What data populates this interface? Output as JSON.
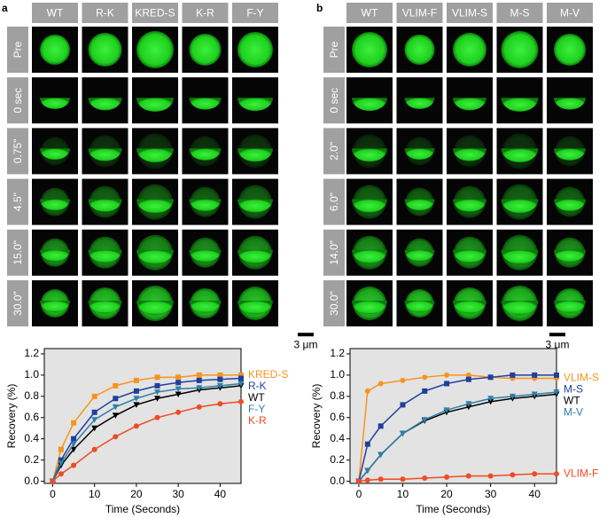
{
  "panels": [
    {
      "letter": "a",
      "columns": [
        "WT",
        "R-K",
        "KRED-S",
        "K-R",
        "F-Y"
      ],
      "rows": [
        "Pre",
        "0 sec",
        "0.75\"",
        "4.5\"",
        "15.0\"",
        "30.0\""
      ],
      "scale_bar": "3 μm"
    },
    {
      "letter": "b",
      "columns": [
        "WT",
        "VLIM-F",
        "VLIM-S",
        "M-S",
        "M-V"
      ],
      "rows": [
        "Pre",
        "0 sec",
        "2.0\"",
        "6.0\"",
        "14.0\"",
        "30.0\""
      ],
      "scale_bar": "3 μm"
    }
  ],
  "chart_data": [
    {
      "type": "line",
      "x_label": "Time (Seconds)",
      "y_label": "Recovery (%)",
      "x": [
        0,
        2,
        5,
        10,
        15,
        20,
        25,
        30,
        35,
        40,
        45
      ],
      "series": [
        {
          "name": "KRED-S",
          "color": "#f7941d",
          "marker": "square",
          "values": [
            0,
            0.3,
            0.55,
            0.8,
            0.9,
            0.95,
            0.98,
            0.98,
            1.0,
            1.0,
            1.0
          ]
        },
        {
          "name": "R-K",
          "color": "#1f3f9f",
          "marker": "square",
          "values": [
            0,
            0.2,
            0.4,
            0.65,
            0.78,
            0.85,
            0.9,
            0.93,
            0.95,
            0.96,
            0.97
          ]
        },
        {
          "name": "WT",
          "color": "#000000",
          "marker": "triangle",
          "values": [
            0,
            0.15,
            0.3,
            0.5,
            0.62,
            0.72,
            0.78,
            0.82,
            0.86,
            0.88,
            0.9
          ]
        },
        {
          "name": "F-Y",
          "color": "#2f7fa8",
          "marker": "triangle",
          "values": [
            0,
            0.17,
            0.35,
            0.58,
            0.7,
            0.78,
            0.84,
            0.87,
            0.88,
            0.9,
            0.92
          ]
        },
        {
          "name": "K-R",
          "color": "#f04b23",
          "marker": "circle",
          "values": [
            0,
            0.07,
            0.15,
            0.3,
            0.42,
            0.52,
            0.6,
            0.65,
            0.7,
            0.73,
            0.75
          ]
        }
      ],
      "xlim": [
        -2,
        45
      ],
      "xticks": [
        0,
        10,
        20,
        30,
        40
      ],
      "ylim": [
        -0.02,
        1.25
      ],
      "yticks": [
        {
          "value": 0,
          "label": "0.0"
        },
        0.2,
        0.4,
        0.6,
        0.8,
        {
          "value": 1,
          "label": "1.0"
        },
        1.2
      ]
    },
    {
      "type": "line",
      "x_label": "Time (Seconds)",
      "y_label": "Recovery (%)",
      "x": [
        0,
        2,
        5,
        10,
        15,
        20,
        25,
        30,
        35,
        40,
        45
      ],
      "series": [
        {
          "name": "VLIM-S",
          "color": "#f7941d",
          "marker": "circle",
          "values": [
            0,
            0.85,
            0.92,
            0.95,
            0.98,
            1.0,
            1.0,
            0.98,
            0.97,
            0.97,
            0.97
          ]
        },
        {
          "name": "M-S",
          "color": "#1f3f9f",
          "marker": "square",
          "values": [
            0,
            0.35,
            0.52,
            0.72,
            0.85,
            0.92,
            0.96,
            0.98,
            1.0,
            1.0,
            1.0
          ]
        },
        {
          "name": "WT",
          "color": "#000000",
          "marker": "triangle",
          "values": [
            0,
            0.1,
            0.25,
            0.45,
            0.57,
            0.65,
            0.7,
            0.75,
            0.78,
            0.8,
            0.82
          ]
        },
        {
          "name": "M-V",
          "color": "#2f7fa8",
          "marker": "triangle",
          "values": [
            0,
            0.1,
            0.25,
            0.45,
            0.58,
            0.67,
            0.73,
            0.78,
            0.8,
            0.82,
            0.84
          ]
        },
        {
          "name": "VLIM-F",
          "color": "#f04b23",
          "marker": "circle",
          "values": [
            0,
            0.01,
            0.02,
            0.02,
            0.03,
            0.04,
            0.05,
            0.05,
            0.06,
            0.07,
            0.07
          ]
        }
      ],
      "xlim": [
        -2,
        45
      ],
      "xticks": [
        0,
        10,
        20,
        30,
        40
      ],
      "ylim": [
        -0.02,
        1.25
      ],
      "yticks": [
        {
          "value": 0,
          "label": "0.0"
        },
        0.2,
        0.4,
        0.6,
        0.8,
        {
          "value": 1,
          "label": "1.0"
        },
        1.2
      ]
    }
  ]
}
